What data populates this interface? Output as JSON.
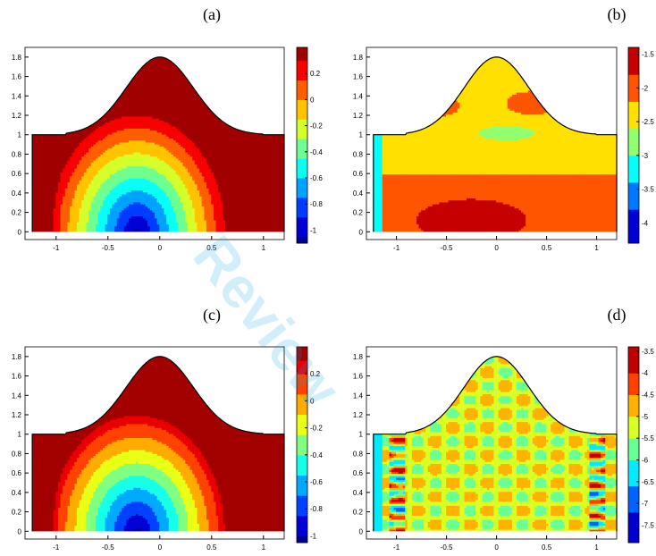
{
  "watermark": "Review",
  "chart_data": [
    {
      "type": "heatmap",
      "panel_label": "(a)",
      "xlim": [
        -1.3,
        1.2
      ],
      "ylim": [
        -0.08,
        1.9
      ],
      "xticks": [
        -1,
        -0.5,
        0,
        0.5,
        1
      ],
      "xtick_labels": [
        "-1",
        "-0.5",
        "0",
        "0.5",
        "1"
      ],
      "yticks": [
        0,
        0.2,
        0.4,
        0.6,
        0.8,
        1,
        1.2,
        1.4,
        1.6,
        1.8
      ],
      "ytick_labels": [
        "0",
        "0.2",
        "0.4",
        "0.6",
        "0.8",
        "1",
        "1.2",
        "1.4",
        "1.6",
        "1.8"
      ],
      "colorbar": {
        "range": [
          -1.1,
          0.4
        ],
        "ticks": [
          0.2,
          0,
          -0.2,
          -0.4,
          -0.6,
          -0.8,
          -1
        ],
        "tick_labels": [
          "0.2",
          "0",
          "-0.2",
          "-0.4",
          "-0.6",
          "-0.8",
          "-1"
        ]
      },
      "field": "smooth",
      "contour_levels": [
        -1.05,
        -0.9,
        -0.75,
        -0.6,
        -0.45,
        -0.3,
        -0.15,
        0.0,
        0.15,
        0.3
      ],
      "boundary": "top boundary bump from y=1 to y=1.8, peak at x=0"
    },
    {
      "type": "heatmap",
      "panel_label": "(b)",
      "xlim": [
        -1.3,
        1.2
      ],
      "ylim": [
        -0.08,
        1.9
      ],
      "xticks": [
        -1,
        -0.5,
        0,
        0.5,
        1
      ],
      "xtick_labels": [
        "-1",
        "-0.5",
        "0",
        "0.5",
        "1"
      ],
      "yticks": [
        0,
        0.2,
        0.4,
        0.6,
        0.8,
        1,
        1.2,
        1.4,
        1.6,
        1.8
      ],
      "ytick_labels": [
        "0",
        "0.2",
        "0.4",
        "0.6",
        "0.8",
        "1",
        "1.2",
        "1.4",
        "1.6",
        "1.8"
      ],
      "colorbar": {
        "range": [
          -4.3,
          -1.4
        ],
        "ticks": [
          -1.5,
          -2,
          -2.5,
          -3,
          -3.5,
          -4
        ],
        "tick_labels": [
          "-1.5",
          "-2",
          "-2.5",
          "-3",
          "-3.5",
          "-4"
        ]
      },
      "field": "error",
      "contour_levels": [
        -3.8,
        -3.4,
        -3.0,
        -2.6,
        -2.2,
        -1.8
      ],
      "boundary": "top boundary bump from y=1 to y=1.8, peak at x=0"
    },
    {
      "type": "heatmap",
      "panel_label": "(c)",
      "xlim": [
        -1.3,
        1.2
      ],
      "ylim": [
        -0.08,
        1.9
      ],
      "xticks": [
        -1,
        -0.5,
        0,
        0.5,
        1
      ],
      "xtick_labels": [
        "-1",
        "-0.5",
        "0",
        "0.5",
        "1"
      ],
      "yticks": [
        0,
        0.2,
        0.4,
        0.6,
        0.8,
        1,
        1.2,
        1.4,
        1.6,
        1.8
      ],
      "ytick_labels": [
        "0",
        "0.2",
        "0.4",
        "0.6",
        "0.8",
        "1",
        "1.2",
        "1.4",
        "1.6",
        "1.8"
      ],
      "colorbar": {
        "range": [
          -1.05,
          0.4
        ],
        "ticks": [
          0.2,
          0,
          -0.2,
          -0.4,
          -0.6,
          -0.8,
          -1
        ],
        "tick_labels": [
          "0.2",
          "0",
          "-0.2",
          "-0.4",
          "-0.6",
          "-0.8",
          "-1"
        ]
      },
      "field": "smooth",
      "contour_levels": [
        -1.0,
        -0.85,
        -0.7,
        -0.55,
        -0.4,
        -0.25,
        -0.1,
        0.05,
        0.2,
        0.3
      ],
      "boundary": "top boundary bump from y=1 to y=1.8, peak at x=0"
    },
    {
      "type": "heatmap",
      "panel_label": "(d)",
      "xlim": [
        -1.3,
        1.2
      ],
      "ylim": [
        -0.08,
        1.9
      ],
      "xticks": [
        -1,
        -0.5,
        0,
        0.5,
        1
      ],
      "xtick_labels": [
        "-1",
        "-0.5",
        "0",
        "0.5",
        "1"
      ],
      "yticks": [
        0,
        0.2,
        0.4,
        0.6,
        0.8,
        1,
        1.2,
        1.4,
        1.6,
        1.8
      ],
      "ytick_labels": [
        "0",
        "0.2",
        "0.4",
        "0.6",
        "0.8",
        "1",
        "1.2",
        "1.4",
        "1.6",
        "1.8"
      ],
      "colorbar": {
        "range": [
          -7.9,
          -3.4
        ],
        "ticks": [
          -3.5,
          -4,
          -4.5,
          -5,
          -5.5,
          -6,
          -6.5,
          -7,
          -7.5
        ],
        "tick_labels": [
          "-3.5",
          "-4",
          "-4.5",
          "-5",
          "-5.5",
          "-6",
          "-6.5",
          "-7",
          "-7.5"
        ]
      },
      "field": "oscillatory",
      "contour_levels": [
        -7.2,
        -6.6,
        -6.0,
        -5.5,
        -5.0,
        -4.5,
        -4.0
      ],
      "boundary": "top boundary bump from y=1 to y=1.8, peak at x=0"
    }
  ]
}
